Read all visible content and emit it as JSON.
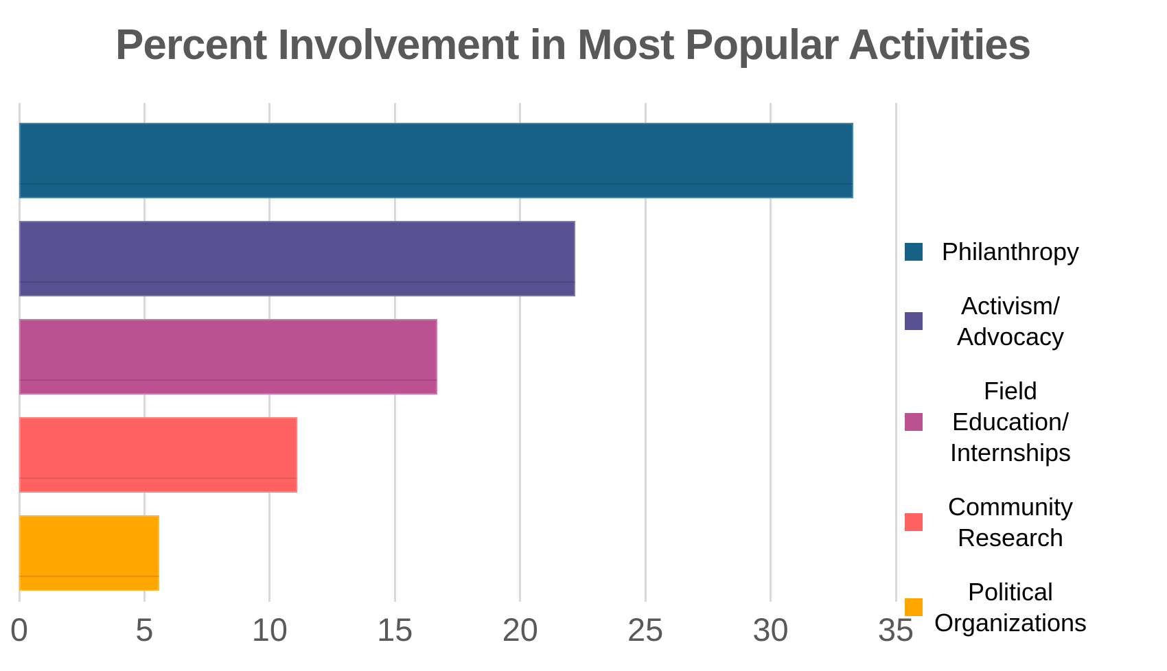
{
  "title": "Percent Involvement in Most Popular Activities",
  "chart_data": {
    "type": "bar",
    "orientation": "horizontal",
    "title": "Percent Involvement in Most Popular Activities",
    "xlabel": "",
    "ylabel": "",
    "xlim": [
      0,
      35
    ],
    "x_ticks": [
      0,
      5,
      10,
      15,
      20,
      25,
      30,
      35
    ],
    "grid": "vertical-only",
    "legend_position": "right",
    "categories": [
      "Philanthropy",
      "Activism/Advocacy",
      "Field Education/Internships",
      "Community Research",
      "Political Organizations"
    ],
    "values": [
      33.3,
      22.2,
      16.7,
      11.1,
      5.6
    ],
    "colors": [
      "#176187",
      "#585191",
      "#BC5191",
      "#FF6361",
      "#FFA600"
    ]
  },
  "legend": {
    "items": [
      {
        "lines": [
          "Philanthropy"
        ],
        "color": "#176187"
      },
      {
        "lines": [
          "Activism/",
          "Advocacy"
        ],
        "color": "#585191"
      },
      {
        "lines": [
          "Field Education/",
          "Internships"
        ],
        "color": "#BC5191"
      },
      {
        "lines": [
          "Community",
          "Research"
        ],
        "color": "#FF6361"
      },
      {
        "lines": [
          "Political",
          "Organizations"
        ],
        "color": "#FFA600"
      }
    ]
  },
  "colors": {
    "title_text": "#595959",
    "tick_text": "#595959",
    "gridline": "#d9d9d9",
    "legend_text": "#000000",
    "background": "#ffffff"
  }
}
